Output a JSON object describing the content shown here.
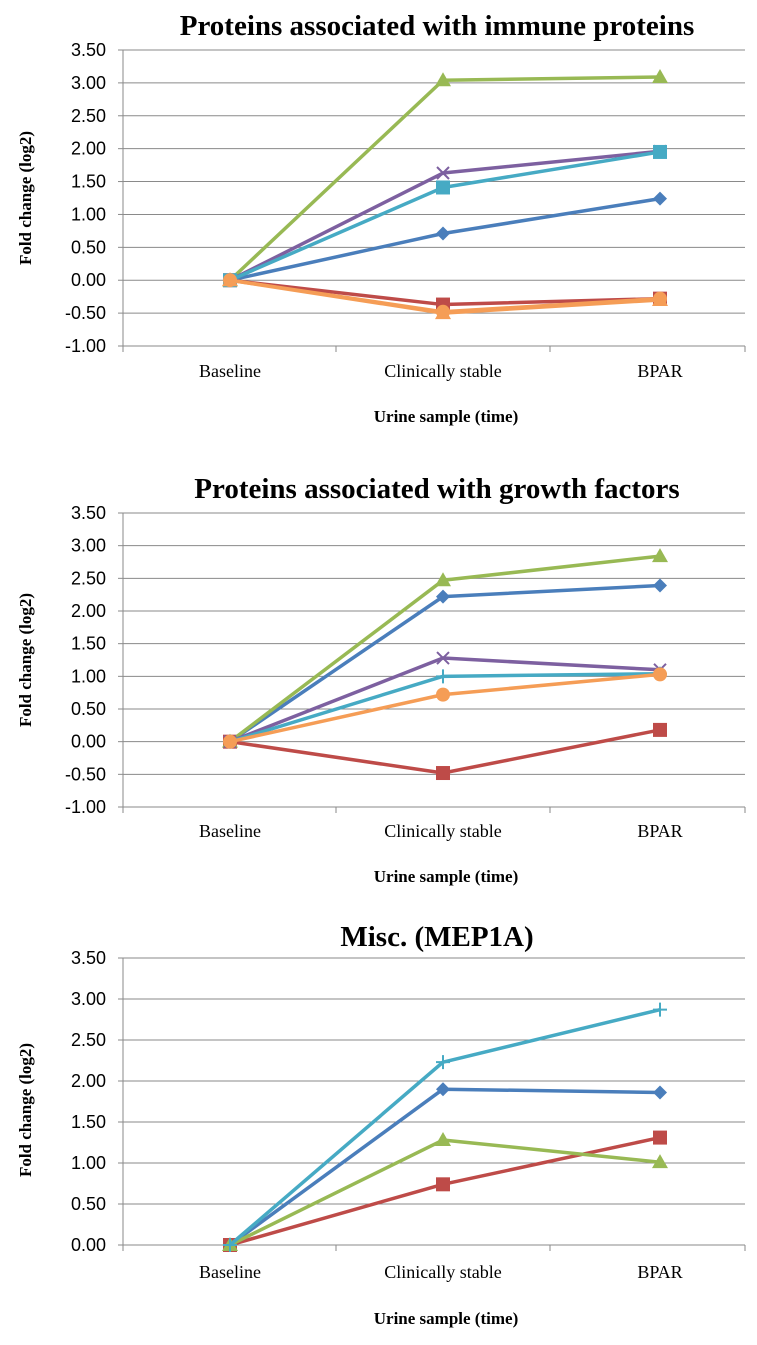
{
  "chart_data": [
    {
      "type": "line",
      "title": "Proteins associated with immune proteins",
      "xlabel": "Urine sample (time)",
      "ylabel": "Fold change (log2)",
      "categories": [
        "Baseline",
        "Clinically stable",
        "BPAR"
      ],
      "ylim": [
        -1.0,
        3.5
      ],
      "yticks": [
        "3.50",
        "3.00",
        "2.50",
        "2.00",
        "1.50",
        "1.00",
        "0.50",
        "0.00",
        "-0.50",
        "-1.00"
      ],
      "grid": true,
      "series": [
        {
          "values": [
            0,
            0.71,
            1.24
          ],
          "color": "#4a7ebb",
          "marker": "diamond"
        },
        {
          "values": [
            0,
            -0.37,
            -0.28
          ],
          "color": "#be4b48",
          "marker": "square"
        },
        {
          "values": [
            0,
            3.04,
            3.09
          ],
          "color": "#98b954",
          "marker": "triangle"
        },
        {
          "values": [
            0,
            1.63,
            1.96
          ],
          "color": "#7d60a0",
          "marker": "x"
        },
        {
          "values": [
            0,
            1.41,
            1.95
          ],
          "color": "#46aac4",
          "marker": "square"
        },
        {
          "values": [
            0,
            -0.48,
            -0.28
          ],
          "color": "#f59d56",
          "marker": "circle"
        },
        {
          "values": [
            0,
            -0.5,
            -0.3
          ],
          "color": "#f59d56",
          "marker": "triangle"
        }
      ]
    },
    {
      "type": "line",
      "title": "Proteins associated with growth factors",
      "xlabel": "Urine sample (time)",
      "ylabel": "Fold change (log2)",
      "categories": [
        "Baseline",
        "Clinically stable",
        "BPAR"
      ],
      "ylim": [
        -1.0,
        3.5
      ],
      "yticks": [
        "3.50",
        "3.00",
        "2.50",
        "2.00",
        "1.50",
        "1.00",
        "0.50",
        "0.00",
        "-0.50",
        "-1.00"
      ],
      "grid": true,
      "series": [
        {
          "values": [
            0,
            2.22,
            2.39
          ],
          "color": "#4a7ebb",
          "marker": "diamond"
        },
        {
          "values": [
            0,
            -0.48,
            0.18
          ],
          "color": "#be4b48",
          "marker": "square"
        },
        {
          "values": [
            0,
            2.47,
            2.84
          ],
          "color": "#98b954",
          "marker": "triangle"
        },
        {
          "values": [
            0,
            1.28,
            1.1
          ],
          "color": "#7d60a0",
          "marker": "x"
        },
        {
          "values": [
            0,
            1.0,
            1.04
          ],
          "color": "#46aac4",
          "marker": "plus"
        },
        {
          "values": [
            0,
            0.72,
            1.03
          ],
          "color": "#f59d56",
          "marker": "circle"
        }
      ]
    },
    {
      "type": "line",
      "title": "Misc. (MEP1A)",
      "xlabel": "Urine sample (time)",
      "ylabel": "Fold change (log2)",
      "categories": [
        "Baseline",
        "Clinically stable",
        "BPAR"
      ],
      "ylim": [
        0.0,
        3.5
      ],
      "yticks": [
        "3.50",
        "3.00",
        "2.50",
        "2.00",
        "1.50",
        "1.00",
        "0.50",
        "0.00"
      ],
      "grid": true,
      "series": [
        {
          "values": [
            0,
            1.9,
            1.86
          ],
          "color": "#4a7ebb",
          "marker": "diamond"
        },
        {
          "values": [
            0,
            0.74,
            1.31
          ],
          "color": "#be4b48",
          "marker": "square"
        },
        {
          "values": [
            0,
            1.28,
            1.01
          ],
          "color": "#98b954",
          "marker": "triangle"
        },
        {
          "values": [
            0,
            2.23,
            2.87
          ],
          "color": "#46aac4",
          "marker": "plus"
        }
      ]
    }
  ]
}
